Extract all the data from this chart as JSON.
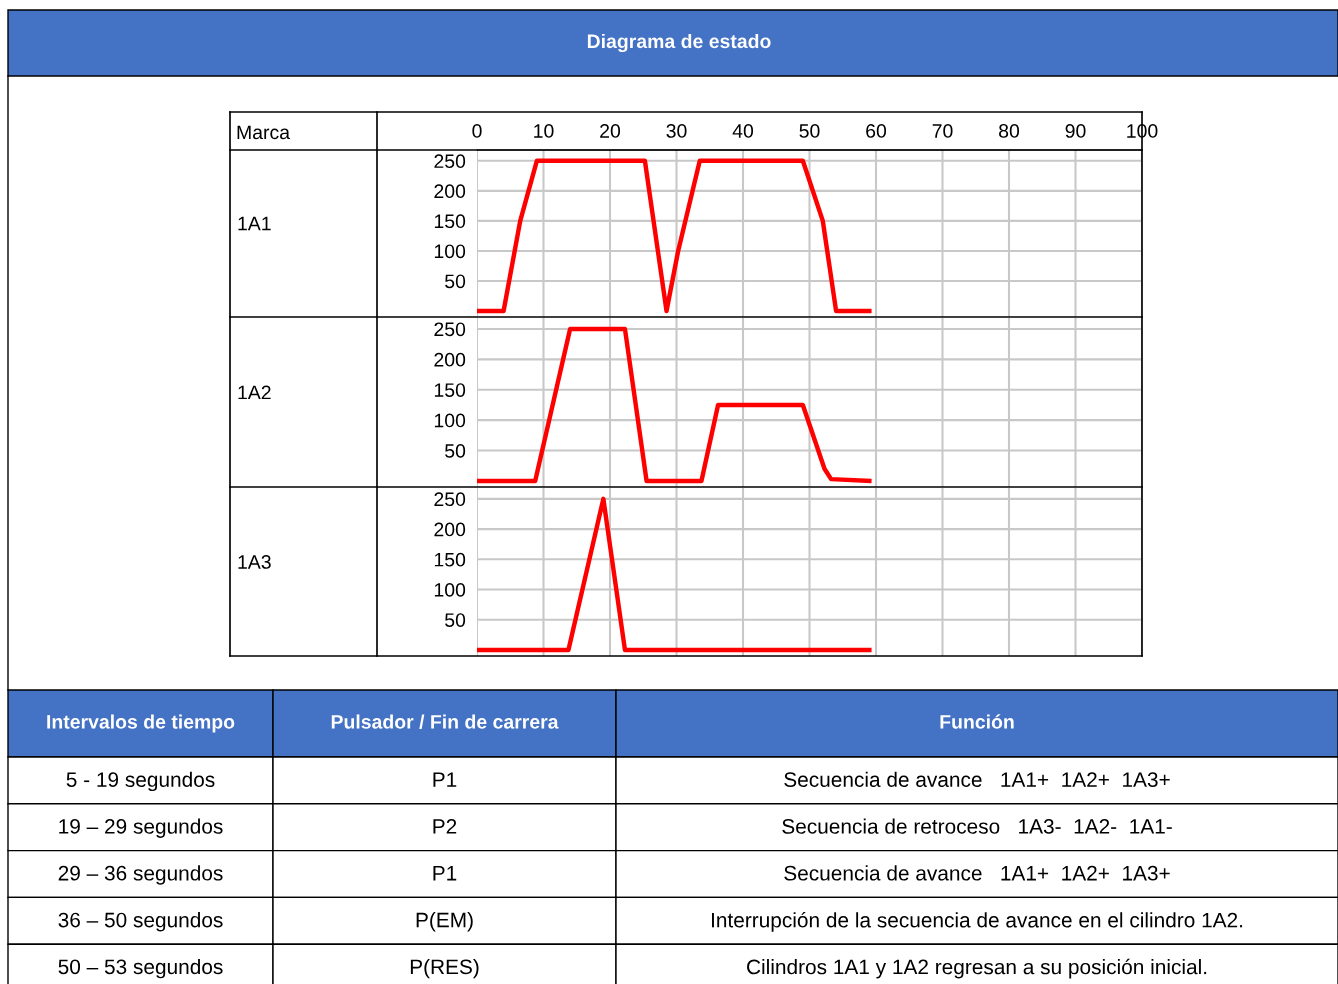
{
  "chart_data": [
    {
      "type": "line",
      "title": "Diagrama de estado",
      "annotations": [
        "Marca"
      ],
      "ylabel": "1A1",
      "xlim": [
        0,
        100
      ],
      "xticks": [
        0,
        10,
        20,
        30,
        40,
        50,
        60,
        70,
        80,
        90,
        100
      ],
      "ylim": [
        -10,
        268
      ],
      "yticks": [
        50,
        100,
        150,
        200,
        250
      ],
      "grid": true,
      "series": [
        {
          "color": "#ff0000",
          "x": [
            0,
            4,
            6.5,
            9,
            17,
            25.25,
            28.5,
            30.25,
            33.5,
            49,
            52,
            54,
            59
          ],
          "values": [
            0,
            0,
            150,
            250,
            250,
            250,
            0,
            100,
            250,
            250,
            150,
            0,
            0
          ]
        }
      ]
    },
    {
      "type": "line",
      "ylabel": "1A2",
      "tick_labels": "y",
      "xlim": [
        0,
        100
      ],
      "xticks": [
        0,
        10,
        20,
        30,
        40,
        50,
        60,
        70,
        80,
        90,
        100
      ],
      "ylim": [
        -10,
        268
      ],
      "yticks": [
        50,
        100,
        150,
        200,
        250
      ],
      "grid": true,
      "series": [
        {
          "color": "#ff0000",
          "x": [
            0,
            8.75,
            14,
            22.25,
            25.5,
            33.75,
            36.25,
            49,
            52.25,
            53.25,
            59
          ],
          "values": [
            0,
            0,
            250,
            250,
            0,
            0,
            125,
            125,
            20,
            3,
            0
          ]
        }
      ]
    },
    {
      "type": "line",
      "ylabel": "1A3",
      "tick_labels": "y",
      "xlim": [
        0,
        100
      ],
      "xticks": [
        0,
        10,
        20,
        30,
        40,
        50,
        60,
        70,
        80,
        90,
        100
      ],
      "ylim": [
        -10,
        268
      ],
      "yticks": [
        50,
        100,
        150,
        200,
        250
      ],
      "grid": true,
      "series": [
        {
          "color": "#ff0000",
          "x": [
            0,
            13.75,
            19,
            22.25,
            59
          ],
          "values": [
            0,
            0,
            250,
            0,
            0
          ]
        }
      ]
    },
    {
      "type": "other",
      "color": "#4472c4",
      "categories": [
        "Intervalos de tiempo",
        "Pulsador / Fin de carrera",
        "Función"
      ],
      "annotations": [
        "5 - 19 segundos",
        "P1",
        "Secuencia de avance   1A1+  1A2+  1A3+",
        "19 – 29 segundos",
        "P2",
        "Secuencia de retroceso   1A3-  1A2-  1A1-",
        "29 – 36 segundos",
        "P1",
        "Secuencia de avance   1A1+  1A2+  1A3+",
        "36 – 50 segundos",
        "P(EM)",
        "Interrupción de la secuencia de avance en el cilindro 1A2.",
        "50 – 53 segundos",
        "P(RES)",
        "Cilindros 1A1 y 1A2 regresan a su posición inicial."
      ]
    }
  ]
}
